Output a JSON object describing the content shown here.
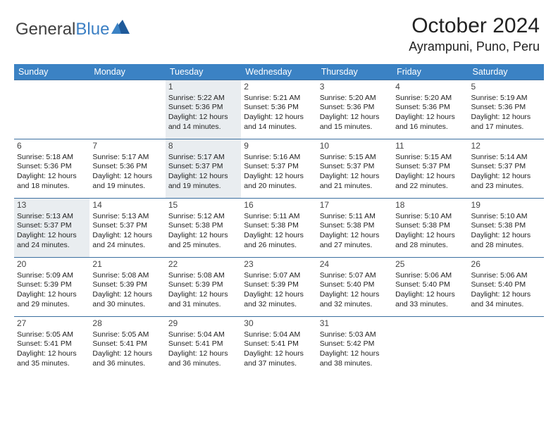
{
  "logo": {
    "part1": "General",
    "part2": "Blue"
  },
  "title": "October 2024",
  "subtitle": "Ayrampuni, Puno, Peru",
  "colors": {
    "header_bg": "#3b82c4",
    "header_text": "#ffffff",
    "rule": "#3b6fa0",
    "shade": "#e9edf0",
    "logo_blue": "#3b7fc4",
    "logo_gray": "#404040",
    "page_bg": "#ffffff",
    "text": "#222222"
  },
  "dayNames": [
    "Sunday",
    "Monday",
    "Tuesday",
    "Wednesday",
    "Thursday",
    "Friday",
    "Saturday"
  ],
  "weeks": [
    [
      {
        "day": "",
        "shade": false
      },
      {
        "day": "",
        "shade": false
      },
      {
        "day": "1",
        "shade": true,
        "sunrise": "Sunrise: 5:22 AM",
        "sunset": "Sunset: 5:36 PM",
        "dl1": "Daylight: 12 hours",
        "dl2": "and 14 minutes."
      },
      {
        "day": "2",
        "shade": false,
        "sunrise": "Sunrise: 5:21 AM",
        "sunset": "Sunset: 5:36 PM",
        "dl1": "Daylight: 12 hours",
        "dl2": "and 14 minutes."
      },
      {
        "day": "3",
        "shade": false,
        "sunrise": "Sunrise: 5:20 AM",
        "sunset": "Sunset: 5:36 PM",
        "dl1": "Daylight: 12 hours",
        "dl2": "and 15 minutes."
      },
      {
        "day": "4",
        "shade": false,
        "sunrise": "Sunrise: 5:20 AM",
        "sunset": "Sunset: 5:36 PM",
        "dl1": "Daylight: 12 hours",
        "dl2": "and 16 minutes."
      },
      {
        "day": "5",
        "shade": false,
        "sunrise": "Sunrise: 5:19 AM",
        "sunset": "Sunset: 5:36 PM",
        "dl1": "Daylight: 12 hours",
        "dl2": "and 17 minutes."
      }
    ],
    [
      {
        "day": "6",
        "shade": false,
        "sunrise": "Sunrise: 5:18 AM",
        "sunset": "Sunset: 5:36 PM",
        "dl1": "Daylight: 12 hours",
        "dl2": "and 18 minutes."
      },
      {
        "day": "7",
        "shade": false,
        "sunrise": "Sunrise: 5:17 AM",
        "sunset": "Sunset: 5:36 PM",
        "dl1": "Daylight: 12 hours",
        "dl2": "and 19 minutes."
      },
      {
        "day": "8",
        "shade": true,
        "sunrise": "Sunrise: 5:17 AM",
        "sunset": "Sunset: 5:37 PM",
        "dl1": "Daylight: 12 hours",
        "dl2": "and 19 minutes."
      },
      {
        "day": "9",
        "shade": false,
        "sunrise": "Sunrise: 5:16 AM",
        "sunset": "Sunset: 5:37 PM",
        "dl1": "Daylight: 12 hours",
        "dl2": "and 20 minutes."
      },
      {
        "day": "10",
        "shade": false,
        "sunrise": "Sunrise: 5:15 AM",
        "sunset": "Sunset: 5:37 PM",
        "dl1": "Daylight: 12 hours",
        "dl2": "and 21 minutes."
      },
      {
        "day": "11",
        "shade": false,
        "sunrise": "Sunrise: 5:15 AM",
        "sunset": "Sunset: 5:37 PM",
        "dl1": "Daylight: 12 hours",
        "dl2": "and 22 minutes."
      },
      {
        "day": "12",
        "shade": false,
        "sunrise": "Sunrise: 5:14 AM",
        "sunset": "Sunset: 5:37 PM",
        "dl1": "Daylight: 12 hours",
        "dl2": "and 23 minutes."
      }
    ],
    [
      {
        "day": "13",
        "shade": true,
        "sunrise": "Sunrise: 5:13 AM",
        "sunset": "Sunset: 5:37 PM",
        "dl1": "Daylight: 12 hours",
        "dl2": "and 24 minutes."
      },
      {
        "day": "14",
        "shade": false,
        "sunrise": "Sunrise: 5:13 AM",
        "sunset": "Sunset: 5:37 PM",
        "dl1": "Daylight: 12 hours",
        "dl2": "and 24 minutes."
      },
      {
        "day": "15",
        "shade": false,
        "sunrise": "Sunrise: 5:12 AM",
        "sunset": "Sunset: 5:38 PM",
        "dl1": "Daylight: 12 hours",
        "dl2": "and 25 minutes."
      },
      {
        "day": "16",
        "shade": false,
        "sunrise": "Sunrise: 5:11 AM",
        "sunset": "Sunset: 5:38 PM",
        "dl1": "Daylight: 12 hours",
        "dl2": "and 26 minutes."
      },
      {
        "day": "17",
        "shade": false,
        "sunrise": "Sunrise: 5:11 AM",
        "sunset": "Sunset: 5:38 PM",
        "dl1": "Daylight: 12 hours",
        "dl2": "and 27 minutes."
      },
      {
        "day": "18",
        "shade": false,
        "sunrise": "Sunrise: 5:10 AM",
        "sunset": "Sunset: 5:38 PM",
        "dl1": "Daylight: 12 hours",
        "dl2": "and 28 minutes."
      },
      {
        "day": "19",
        "shade": false,
        "sunrise": "Sunrise: 5:10 AM",
        "sunset": "Sunset: 5:38 PM",
        "dl1": "Daylight: 12 hours",
        "dl2": "and 28 minutes."
      }
    ],
    [
      {
        "day": "20",
        "shade": false,
        "sunrise": "Sunrise: 5:09 AM",
        "sunset": "Sunset: 5:39 PM",
        "dl1": "Daylight: 12 hours",
        "dl2": "and 29 minutes."
      },
      {
        "day": "21",
        "shade": false,
        "sunrise": "Sunrise: 5:08 AM",
        "sunset": "Sunset: 5:39 PM",
        "dl1": "Daylight: 12 hours",
        "dl2": "and 30 minutes."
      },
      {
        "day": "22",
        "shade": false,
        "sunrise": "Sunrise: 5:08 AM",
        "sunset": "Sunset: 5:39 PM",
        "dl1": "Daylight: 12 hours",
        "dl2": "and 31 minutes."
      },
      {
        "day": "23",
        "shade": false,
        "sunrise": "Sunrise: 5:07 AM",
        "sunset": "Sunset: 5:39 PM",
        "dl1": "Daylight: 12 hours",
        "dl2": "and 32 minutes."
      },
      {
        "day": "24",
        "shade": false,
        "sunrise": "Sunrise: 5:07 AM",
        "sunset": "Sunset: 5:40 PM",
        "dl1": "Daylight: 12 hours",
        "dl2": "and 32 minutes."
      },
      {
        "day": "25",
        "shade": false,
        "sunrise": "Sunrise: 5:06 AM",
        "sunset": "Sunset: 5:40 PM",
        "dl1": "Daylight: 12 hours",
        "dl2": "and 33 minutes."
      },
      {
        "day": "26",
        "shade": false,
        "sunrise": "Sunrise: 5:06 AM",
        "sunset": "Sunset: 5:40 PM",
        "dl1": "Daylight: 12 hours",
        "dl2": "and 34 minutes."
      }
    ],
    [
      {
        "day": "27",
        "shade": false,
        "sunrise": "Sunrise: 5:05 AM",
        "sunset": "Sunset: 5:41 PM",
        "dl1": "Daylight: 12 hours",
        "dl2": "and 35 minutes."
      },
      {
        "day": "28",
        "shade": false,
        "sunrise": "Sunrise: 5:05 AM",
        "sunset": "Sunset: 5:41 PM",
        "dl1": "Daylight: 12 hours",
        "dl2": "and 36 minutes."
      },
      {
        "day": "29",
        "shade": false,
        "sunrise": "Sunrise: 5:04 AM",
        "sunset": "Sunset: 5:41 PM",
        "dl1": "Daylight: 12 hours",
        "dl2": "and 36 minutes."
      },
      {
        "day": "30",
        "shade": false,
        "sunrise": "Sunrise: 5:04 AM",
        "sunset": "Sunset: 5:41 PM",
        "dl1": "Daylight: 12 hours",
        "dl2": "and 37 minutes."
      },
      {
        "day": "31",
        "shade": false,
        "sunrise": "Sunrise: 5:03 AM",
        "sunset": "Sunset: 5:42 PM",
        "dl1": "Daylight: 12 hours",
        "dl2": "and 38 minutes."
      },
      {
        "day": "",
        "shade": false
      },
      {
        "day": "",
        "shade": false
      }
    ]
  ]
}
